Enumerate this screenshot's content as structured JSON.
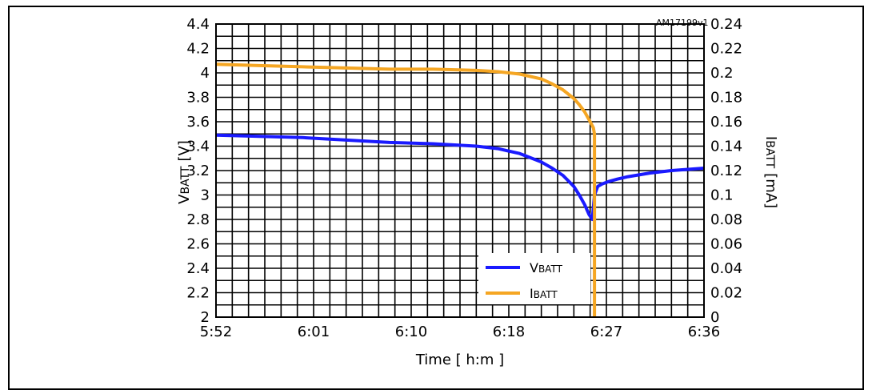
{
  "figure_id": "AM17199v1",
  "colors": {
    "vbatt": "#1a1aff",
    "ibatt": "#f5a623",
    "grid": "#000000"
  },
  "chart_data": {
    "type": "line",
    "title": "",
    "xlabel": "Time [ h:m ]",
    "ylabel": "VBATT [V]",
    "ylabel_main": "V",
    "ylabel_sub": "BATT",
    "ylabel_unit": "[V]",
    "y2label": "IBATT [mA]",
    "y2label_main": "I",
    "y2label_sub": "BATT",
    "y2label_unit": "[mA]",
    "x_ticks": [
      "5:52",
      "6:01",
      "6:10",
      "6:18",
      "6:27",
      "6:36"
    ],
    "xlim": [
      352,
      397
    ],
    "ylim": [
      2,
      4.4
    ],
    "y_ticks": [
      "2",
      "2.2",
      "2.4",
      "2.6",
      "2.8",
      "3",
      "3.2",
      "3.4",
      "3.6",
      "3.8",
      "4",
      "4.2",
      "4.4"
    ],
    "y2lim": [
      0,
      0.24
    ],
    "y2_ticks": [
      "0",
      "0.02",
      "0.04",
      "0.06",
      "0.08",
      "0.1",
      "0.12",
      "0.14",
      "0.16",
      "0.18",
      "0.2",
      "0.22",
      "0.24"
    ],
    "grid": true,
    "legend_position": "bottom-center",
    "series": [
      {
        "name": "VBATT",
        "label_main": "V",
        "label_sub": "BATT",
        "axis": "left",
        "color": "#1a1aff",
        "x": [
          352,
          356,
          360,
          364,
          368,
          372,
          376,
          378,
          380,
          382,
          383,
          384,
          385,
          385.5,
          386,
          386.4,
          386.7,
          386.9,
          387.2,
          387.6,
          388.2,
          389,
          390,
          392,
          394,
          397
        ],
        "y": [
          3.49,
          3.48,
          3.47,
          3.45,
          3.43,
          3.42,
          3.4,
          3.38,
          3.34,
          3.27,
          3.22,
          3.16,
          3.07,
          3.0,
          2.92,
          2.84,
          2.8,
          3.0,
          3.07,
          3.09,
          3.11,
          3.13,
          3.15,
          3.18,
          3.2,
          3.22
        ]
      },
      {
        "name": "IBATT",
        "label_main": "I",
        "label_sub": "BATT",
        "axis": "right",
        "color": "#f5a623",
        "x": [
          352,
          356,
          360,
          364,
          368,
          372,
          376,
          378,
          380,
          382,
          383,
          384,
          385,
          385.5,
          386,
          386.5,
          386.8,
          386.9,
          386.9
        ],
        "y": [
          0.207,
          0.206,
          0.205,
          0.204,
          0.203,
          0.203,
          0.202,
          0.201,
          0.199,
          0.195,
          0.191,
          0.186,
          0.179,
          0.174,
          0.168,
          0.16,
          0.155,
          0.15,
          0.0
        ]
      }
    ]
  }
}
